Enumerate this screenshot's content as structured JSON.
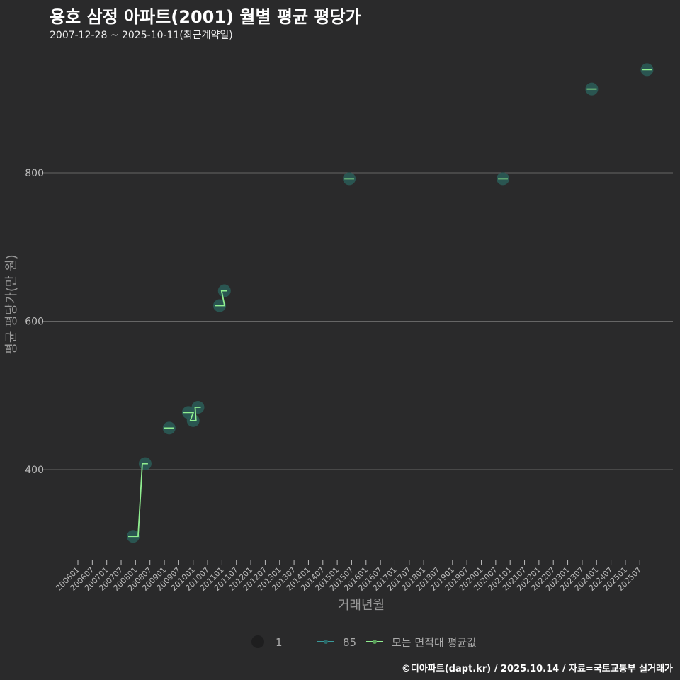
{
  "title": "용호 삼정 아파트(2001) 월별 평균 평당가",
  "subtitle": "2007-12-28 ~ 2025-10-11(최근계약일)",
  "footer": "©디아파트(dapt.kr) / 2025.10.14 / 자료=국토교통부 실거래가",
  "colors": {
    "background": "#2a2a2b",
    "point": "#2a5a55",
    "line": "#90ee90",
    "series85": "#3a9a9a",
    "grid": "#666666"
  },
  "chart_data": {
    "type": "scatter",
    "title": "용호 삼정 아파트(2001) 월별 평균 평당가",
    "xlabel": "거래년월",
    "ylabel": "평균 평당가(만 원)",
    "ylim": [
      280,
      980
    ],
    "yticks": [
      400,
      600,
      800
    ],
    "xticks": [
      "200601",
      "200607",
      "200701",
      "200707",
      "200801",
      "200807",
      "200901",
      "200907",
      "201001",
      "201007",
      "201101",
      "201107",
      "201201",
      "201207",
      "201301",
      "201307",
      "201401",
      "201407",
      "201501",
      "201507",
      "201601",
      "201607",
      "201701",
      "201707",
      "201801",
      "201807",
      "201901",
      "201907",
      "202001",
      "202007",
      "202101",
      "202107",
      "202201",
      "202207",
      "202301",
      "202307",
      "202401",
      "202407",
      "202501",
      "202507"
    ],
    "legend": {
      "size_label": "1",
      "area_label": "85",
      "avg_label": "모든 면적대 평균값",
      "placement": "bottom"
    },
    "series": [
      {
        "name": "85",
        "points": [
          {
            "x": "2007-12",
            "y": 310
          },
          {
            "x": "2008-05",
            "y": 408
          },
          {
            "x": "2009-03",
            "y": 456
          },
          {
            "x": "2009-11",
            "y": 477
          },
          {
            "x": "2010-01",
            "y": 466
          },
          {
            "x": "2010-03",
            "y": 484
          },
          {
            "x": "2010-12",
            "y": 621
          },
          {
            "x": "2011-02",
            "y": 641
          },
          {
            "x": "2015-06",
            "y": 792
          },
          {
            "x": "2020-10",
            "y": 792
          },
          {
            "x": "2023-11",
            "y": 913
          },
          {
            "x": "2025-10",
            "y": 939
          }
        ]
      }
    ]
  }
}
